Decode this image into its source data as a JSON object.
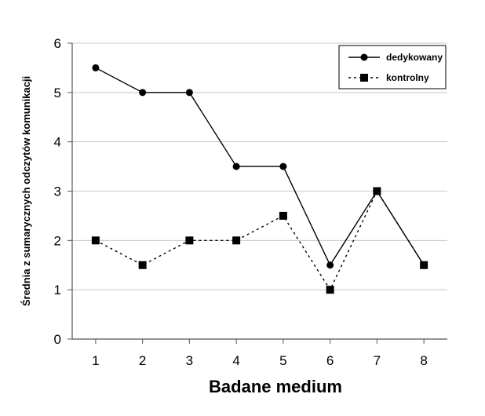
{
  "chart_data": {
    "type": "line",
    "xlabel": "Badane medium",
    "ylabel": "Średnia z sumarycznych odczytów komunikacji",
    "x": [
      1,
      2,
      3,
      4,
      5,
      6,
      7,
      8
    ],
    "xlim": [
      0.5,
      8.5
    ],
    "ylim": [
      0,
      6
    ],
    "yticks": [
      0,
      1,
      2,
      3,
      4,
      5,
      6
    ],
    "grid": "horizontal",
    "legend_position": "top-right",
    "series": [
      {
        "name": "dedykowany",
        "values": [
          5.5,
          5.0,
          5.0,
          3.5,
          3.5,
          1.5,
          3.0,
          1.5
        ],
        "marker": "circle",
        "line": "solid",
        "color": "#000000"
      },
      {
        "name": "kontrolny",
        "values": [
          2.0,
          1.5,
          2.0,
          2.0,
          2.5,
          1.0,
          3.0,
          1.5
        ],
        "marker": "square",
        "line": "dotted",
        "color": "#000000"
      }
    ]
  }
}
